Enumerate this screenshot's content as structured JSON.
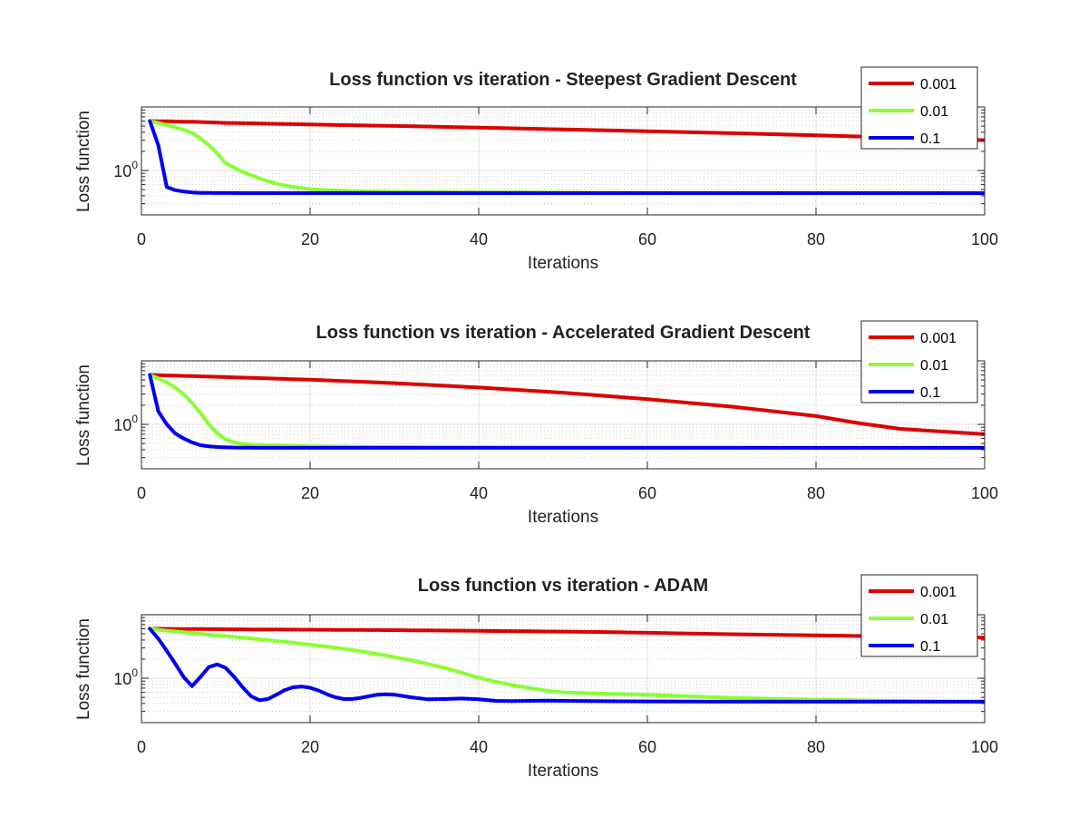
{
  "chart_data": [
    {
      "type": "line",
      "title": "Loss function vs iteration - Steepest Gradient Descent",
      "xlabel": "Iterations",
      "ylabel": "Loss function",
      "xlim": [
        0,
        100
      ],
      "ylim": [
        0.2,
        10
      ],
      "yscale": "log",
      "xticks": [
        0,
        20,
        40,
        60,
        80,
        100
      ],
      "yticks": [
        {
          "value": 1,
          "label": "10",
          "exp": "0"
        }
      ],
      "grid": true,
      "legend_position": "top-right",
      "x": [
        1,
        2,
        3,
        4,
        5,
        6,
        7,
        8,
        9,
        10,
        12,
        14,
        16,
        18,
        20,
        22,
        24,
        26,
        28,
        30,
        35,
        40,
        45,
        50,
        60,
        70,
        80,
        90,
        100
      ],
      "series": [
        {
          "name": "0.001",
          "color": "#dd0000",
          "values": [
            6.0,
            5.97,
            5.94,
            5.91,
            5.88,
            5.85,
            5.79,
            5.73,
            5.67,
            5.61,
            5.55,
            5.49,
            5.43,
            5.37,
            5.31,
            5.25,
            5.19,
            5.14,
            5.08,
            5.03,
            4.88,
            4.73,
            4.58,
            4.44,
            4.15,
            3.87,
            3.58,
            3.29,
            3.0
          ]
        },
        {
          "name": "0.01",
          "color": "#88ff33",
          "values": [
            6.0,
            5.6,
            5.2,
            4.8,
            4.35,
            3.9,
            3.2,
            2.5,
            1.85,
            1.3,
            0.95,
            0.75,
            0.62,
            0.55,
            0.51,
            0.49,
            0.48,
            0.47,
            0.465,
            0.46,
            0.455,
            0.452,
            0.45,
            0.448,
            0.445,
            0.443,
            0.442,
            0.441,
            0.44
          ]
        },
        {
          "name": "0.1",
          "color": "#0000ee",
          "values": [
            6.0,
            2.5,
            0.55,
            0.49,
            0.465,
            0.45,
            0.445,
            0.443,
            0.442,
            0.441,
            0.44,
            0.44,
            0.44,
            0.44,
            0.44,
            0.44,
            0.44,
            0.44,
            0.44,
            0.44,
            0.44,
            0.44,
            0.44,
            0.44,
            0.44,
            0.44,
            0.44,
            0.44,
            0.44
          ]
        }
      ]
    },
    {
      "type": "line",
      "title": "Loss function vs iteration - Accelerated Gradient Descent",
      "xlabel": "Iterations",
      "ylabel": "Loss function",
      "xlim": [
        0,
        100
      ],
      "ylim": [
        0.2,
        10
      ],
      "yscale": "log",
      "xticks": [
        0,
        20,
        40,
        60,
        80,
        100
      ],
      "yticks": [
        {
          "value": 1,
          "label": "10",
          "exp": "0"
        }
      ],
      "grid": true,
      "legend_position": "top-right",
      "x": [
        1,
        2,
        3,
        4,
        5,
        6,
        7,
        8,
        9,
        10,
        11,
        12,
        13,
        14,
        16,
        18,
        20,
        25,
        30,
        40,
        50,
        60,
        70,
        80,
        85,
        90,
        100
      ],
      "series": [
        {
          "name": "0.001",
          "color": "#dd0000",
          "values": [
            6.0,
            5.95,
            5.9,
            5.85,
            5.8,
            5.75,
            5.7,
            5.65,
            5.6,
            5.55,
            5.5,
            5.45,
            5.4,
            5.35,
            5.25,
            5.15,
            5.05,
            4.75,
            4.45,
            3.8,
            3.15,
            2.5,
            1.9,
            1.35,
            1.05,
            0.85,
            0.7
          ]
        },
        {
          "name": "0.01",
          "color": "#88ff33",
          "values": [
            6.0,
            5.3,
            4.6,
            3.8,
            3.0,
            2.2,
            1.5,
            1.0,
            0.72,
            0.58,
            0.52,
            0.49,
            0.48,
            0.475,
            0.465,
            0.458,
            0.452,
            0.445,
            0.44,
            0.435,
            0.432,
            0.43,
            0.429,
            0.428,
            0.428,
            0.428,
            0.428
          ]
        },
        {
          "name": "0.1",
          "color": "#0000ee",
          "values": [
            6.0,
            1.6,
            1.0,
            0.72,
            0.6,
            0.52,
            0.47,
            0.45,
            0.44,
            0.435,
            0.432,
            0.43,
            0.429,
            0.428,
            0.428,
            0.428,
            0.428,
            0.428,
            0.428,
            0.428,
            0.428,
            0.428,
            0.428,
            0.428,
            0.428,
            0.428,
            0.428
          ]
        }
      ]
    },
    {
      "type": "line",
      "title": "Loss function vs iteration - ADAM",
      "xlabel": "Iterations",
      "ylabel": "Loss function",
      "xlim": [
        0,
        100
      ],
      "ylim": [
        0.2,
        10
      ],
      "yscale": "log",
      "xticks": [
        0,
        20,
        40,
        60,
        80,
        100
      ],
      "yticks": [
        {
          "value": 1,
          "label": "10",
          "exp": "0"
        }
      ],
      "grid": true,
      "legend_position": "top-right",
      "x": [
        1,
        2,
        3,
        4,
        5,
        6,
        7,
        8,
        9,
        10,
        11,
        12,
        13,
        14,
        15,
        16,
        17,
        18,
        19,
        20,
        21,
        22,
        23,
        24,
        25,
        26,
        27,
        28,
        29,
        30,
        32,
        34,
        36,
        38,
        40,
        42,
        44,
        46,
        48,
        50,
        55,
        60,
        65,
        70,
        80,
        90,
        100
      ],
      "series": [
        {
          "name": "0.001",
          "color": "#dd0000",
          "values": [
            6.0,
            6.0,
            5.98,
            5.97,
            5.96,
            5.95,
            5.94,
            5.93,
            5.92,
            5.91,
            5.9,
            5.89,
            5.88,
            5.87,
            5.86,
            5.85,
            5.84,
            5.83,
            5.82,
            5.81,
            5.8,
            5.79,
            5.78,
            5.77,
            5.76,
            5.75,
            5.74,
            5.73,
            5.72,
            5.71,
            5.69,
            5.66,
            5.63,
            5.6,
            5.57,
            5.54,
            5.51,
            5.48,
            5.45,
            5.42,
            5.33,
            5.2,
            5.07,
            4.93,
            4.73,
            4.53,
            4.35
          ]
        },
        {
          "name": "0.01",
          "color": "#88ff33",
          "values": [
            6.0,
            5.8,
            5.6,
            5.45,
            5.3,
            5.15,
            5.0,
            4.85,
            4.72,
            4.6,
            4.48,
            4.35,
            4.22,
            4.1,
            3.98,
            3.86,
            3.74,
            3.62,
            3.5,
            3.38,
            3.26,
            3.14,
            3.02,
            2.9,
            2.78,
            2.65,
            2.52,
            2.4,
            2.28,
            2.15,
            1.92,
            1.68,
            1.45,
            1.22,
            1.02,
            0.88,
            0.78,
            0.7,
            0.64,
            0.6,
            0.57,
            0.55,
            0.52,
            0.49,
            0.46,
            0.44,
            0.42
          ]
        },
        {
          "name": "0.1",
          "color": "#0000ee",
          "values": [
            6.0,
            4.2,
            2.7,
            1.7,
            1.05,
            0.75,
            1.05,
            1.5,
            1.65,
            1.45,
            1.05,
            0.72,
            0.52,
            0.45,
            0.47,
            0.55,
            0.65,
            0.72,
            0.74,
            0.71,
            0.64,
            0.56,
            0.5,
            0.47,
            0.47,
            0.49,
            0.52,
            0.55,
            0.56,
            0.55,
            0.5,
            0.465,
            0.47,
            0.48,
            0.465,
            0.44,
            0.438,
            0.44,
            0.445,
            0.44,
            0.435,
            0.432,
            0.43,
            0.428,
            0.428,
            0.428,
            0.428
          ]
        }
      ]
    }
  ]
}
